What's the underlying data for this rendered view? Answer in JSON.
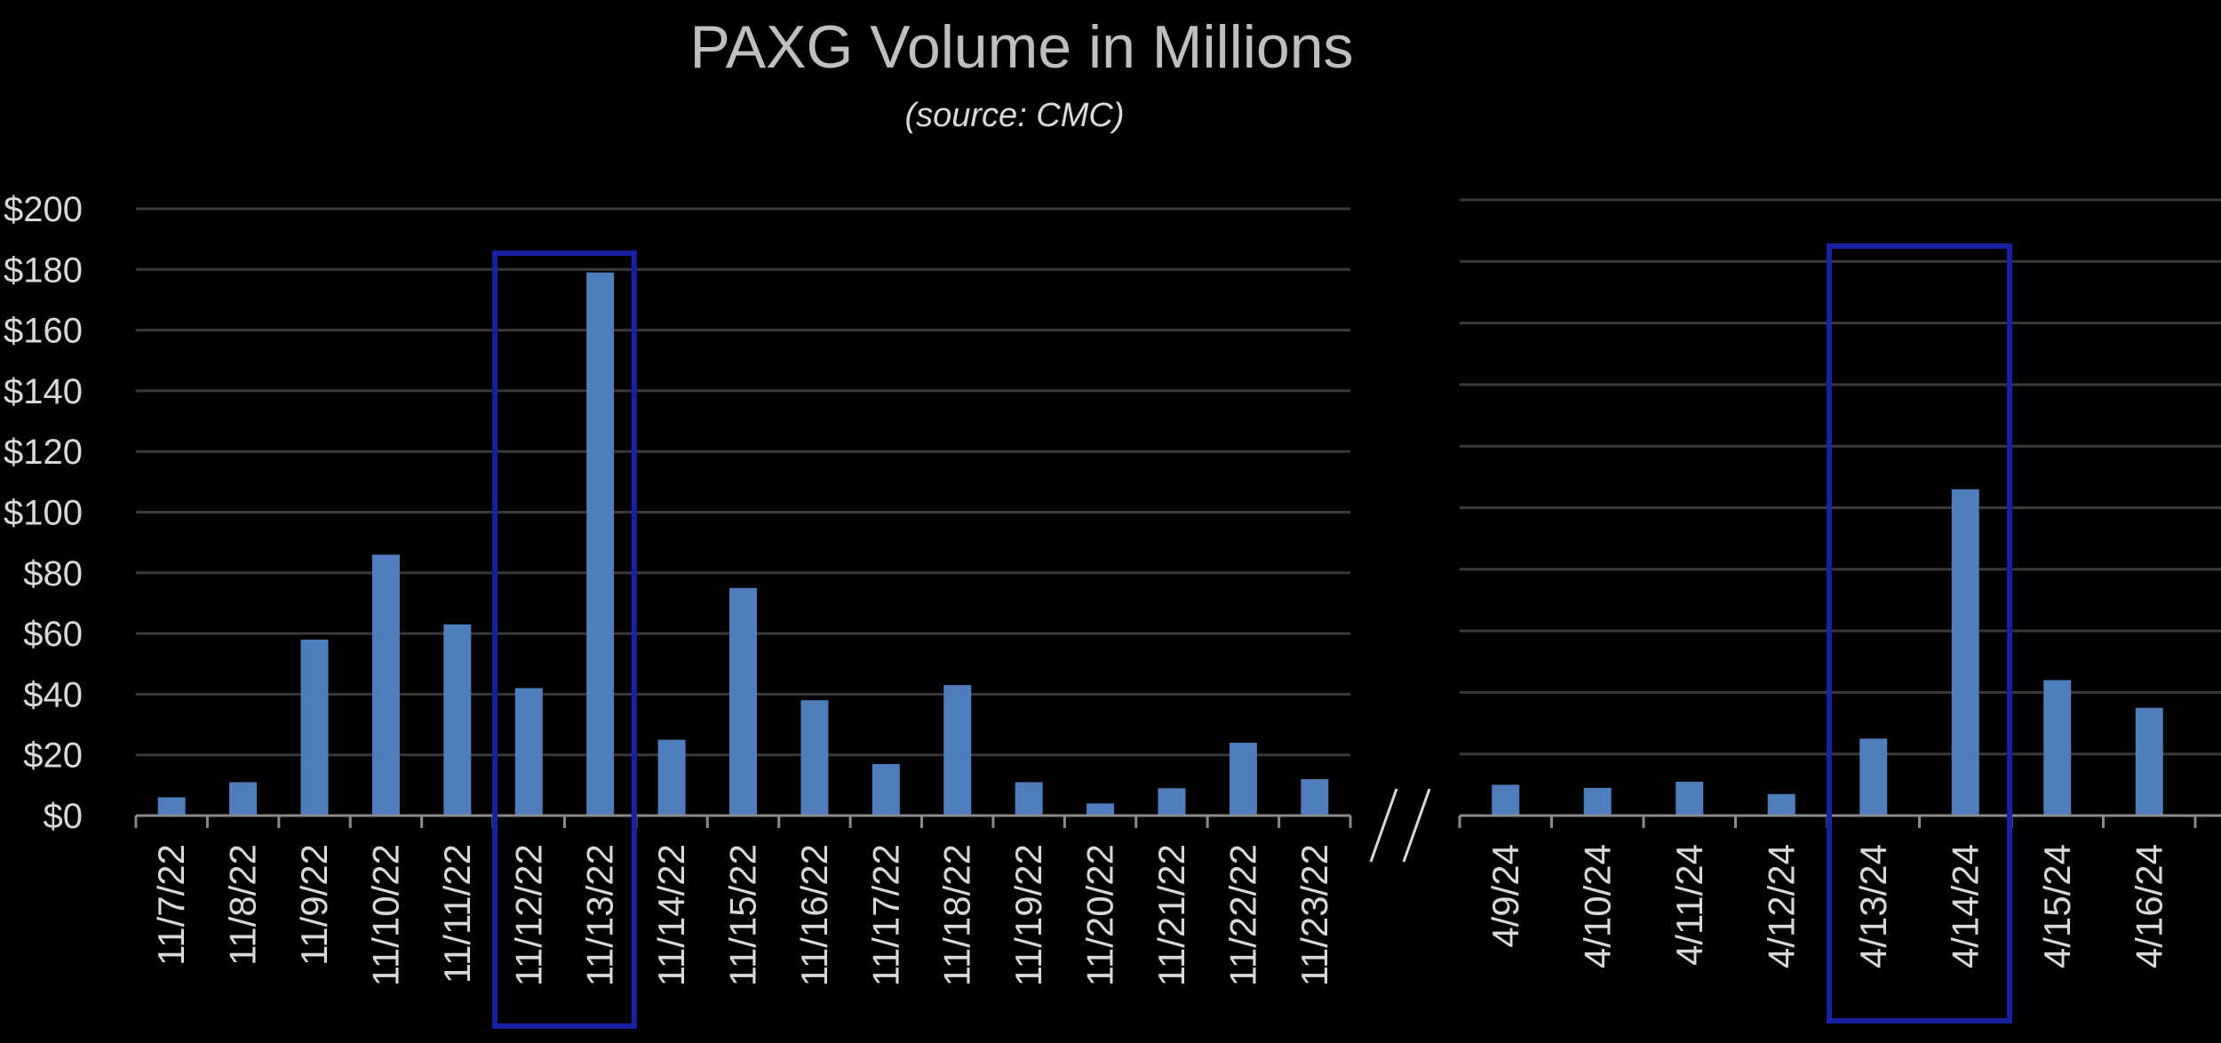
{
  "chart_data": {
    "type": "bar",
    "title": "PAXG Volume in Millions",
    "subtitle": "(source: CMC)",
    "xlabel": "",
    "ylabel": "",
    "ylim": [
      0,
      200
    ],
    "yticks": [
      "$0",
      "$20",
      "$40",
      "$60",
      "$80",
      "$100",
      "$120",
      "$140",
      "$160",
      "$180",
      "$200"
    ],
    "grid": true,
    "axis_break": true,
    "panels": [
      {
        "categories": [
          "11/7/22",
          "11/8/22",
          "11/9/22",
          "11/10/22",
          "11/11/22",
          "11/12/22",
          "11/13/22",
          "11/14/22",
          "11/15/22",
          "11/16/22",
          "11/17/22",
          "11/18/22",
          "11/19/22",
          "11/20/22",
          "11/21/22",
          "11/22/22",
          "11/23/22"
        ],
        "values": [
          6,
          11,
          58,
          86,
          63,
          42,
          179,
          25,
          75,
          38,
          17,
          43,
          11,
          4,
          9,
          24,
          12
        ],
        "highlight": [
          "11/12/22",
          "11/13/22"
        ]
      },
      {
        "categories": [
          "4/9/24",
          "4/10/24",
          "4/11/24",
          "4/12/24",
          "4/13/24",
          "4/14/24",
          "4/15/24",
          "4/16/24"
        ],
        "values": [
          10,
          9,
          11,
          7,
          25,
          106,
          44,
          35
        ],
        "highlight": [
          "4/13/24",
          "4/14/24"
        ]
      }
    ]
  },
  "colors": {
    "background": "#000000",
    "bar": "#4f7dbd",
    "highlight_box": "#1b1fa6",
    "grid": "#3a3a3a",
    "axis": "#8a8a8a",
    "text": "#d9d9d9",
    "title": "#bfbfbf"
  }
}
